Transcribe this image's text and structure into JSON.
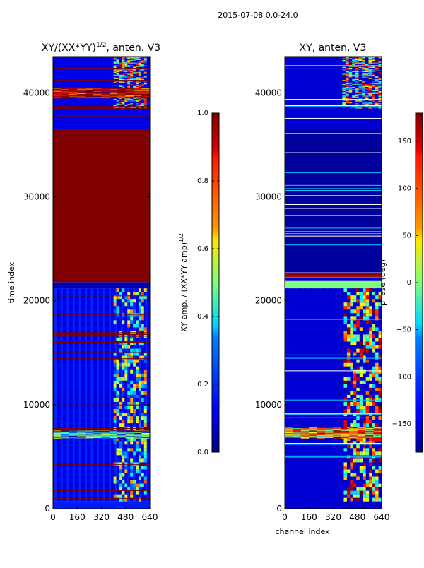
{
  "suptitle": "2015-07-08 0.0-24.0",
  "colors": {
    "dark_red": "#7f0000",
    "dark_blue": "#00007f",
    "blue": "#0000ff",
    "mid_blue": "#0050ff",
    "cyan": "#00d5ff",
    "green": "#7dff7a",
    "yellow": "#ffe600",
    "orange": "#ff6800",
    "red": "#e41a1c",
    "white": "#ffffff"
  },
  "chart_data": [
    {
      "type": "heatmap",
      "title": "XY/(XX*YY)",
      "title_sup": "1/2",
      "title_suffix": ", anten. V3",
      "xlabel": "",
      "ylabel": "time index",
      "xlim": [
        0,
        640
      ],
      "ylim": [
        0,
        43500
      ],
      "xticks": [
        0,
        160,
        320,
        480,
        640
      ],
      "yticks": [
        0,
        10000,
        20000,
        30000,
        40000
      ],
      "colorbar": {
        "label": "XY amp. / (XX*YY amp)",
        "label_sup": "1/2",
        "range": [
          0.0,
          1.0
        ],
        "ticks": [
          "0.0",
          "0.2",
          "0.4",
          "0.6",
          "0.8",
          "1.0"
        ]
      },
      "bands": [
        {
          "y0": 0,
          "y1": 700,
          "value": 0.15
        },
        {
          "y0": 700,
          "y1": 21200,
          "value": 0.1
        },
        {
          "y0": 21200,
          "y1": 21800,
          "value": 0.05
        },
        {
          "y0": 21800,
          "y1": 36500,
          "value": 1.0
        },
        {
          "y0": 36500,
          "y1": 43500,
          "value": 0.1
        }
      ],
      "features": [
        {
          "x0": 400,
          "x1": 620,
          "y0": 700,
          "y1": 21200,
          "value": 0.45
        },
        {
          "x0": 0,
          "x1": 640,
          "y0": 6800,
          "y1": 7600,
          "value": 0.35
        },
        {
          "x0": 400,
          "x1": 620,
          "y0": 38500,
          "y1": 43500,
          "value": 0.6
        },
        {
          "x0": 0,
          "x1": 640,
          "y0": 39500,
          "y1": 40500,
          "value": 1.0
        }
      ]
    },
    {
      "type": "heatmap",
      "title": "XY, anten. V3",
      "xlabel": "channel index",
      "ylabel": "",
      "xlim": [
        0,
        640
      ],
      "ylim": [
        0,
        43500
      ],
      "xticks": [
        0,
        160,
        320,
        480,
        640
      ],
      "yticks": [
        0,
        10000,
        20000,
        30000,
        40000
      ],
      "colorbar": {
        "label": "phase (deg)",
        "range": [
          -180,
          180
        ],
        "ticks": [
          "150",
          "100",
          "50",
          "0",
          "−50",
          "−100",
          "−150"
        ],
        "tick_values": [
          150,
          100,
          50,
          0,
          -50,
          -100,
          -150
        ]
      },
      "bands": [
        {
          "y0": 0,
          "y1": 21200,
          "value": -150
        },
        {
          "y0": 21200,
          "y1": 21900,
          "value": 0
        },
        {
          "y0": 21900,
          "y1": 22300,
          "value": -150
        },
        {
          "y0": 22300,
          "y1": 22700,
          "value": 170
        },
        {
          "y0": 22700,
          "y1": 36500,
          "value": -170
        },
        {
          "y0": 36500,
          "y1": 43500,
          "value": -150
        }
      ],
      "features": [
        {
          "x0": 390,
          "x1": 640,
          "y0": 700,
          "y1": 21200,
          "value": 60
        },
        {
          "x0": 0,
          "x1": 640,
          "y0": 6800,
          "y1": 7800,
          "value": 90
        },
        {
          "x0": 380,
          "x1": 640,
          "y0": 38500,
          "y1": 43500,
          "value": 40
        }
      ]
    }
  ]
}
